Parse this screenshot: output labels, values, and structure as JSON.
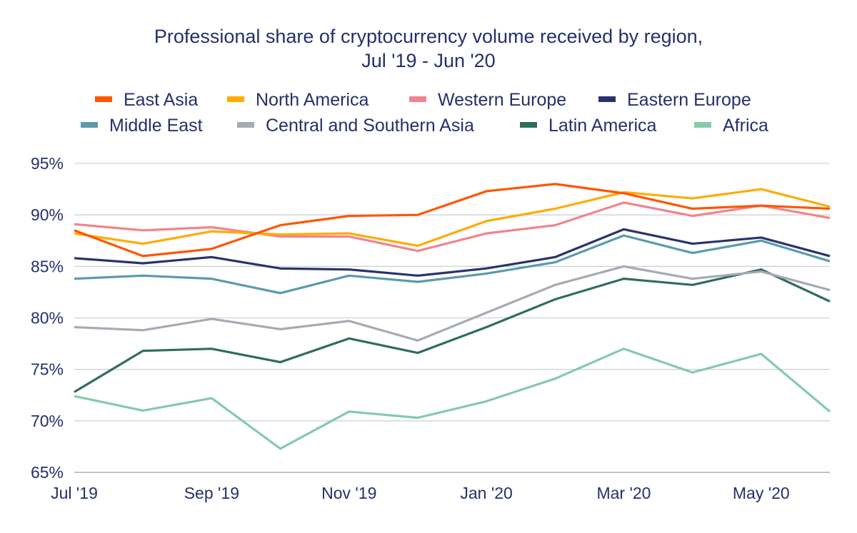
{
  "chart_data": {
    "type": "line",
    "title": [
      "Professional share of cryptocurrency volume received by region,",
      "Jul '19 - Jun '20"
    ],
    "xlabel": "",
    "ylabel": "",
    "x": [
      "Jul '19",
      "Aug '19",
      "Sep '19",
      "Oct '19",
      "Nov '19",
      "Dec '19",
      "Jan '20",
      "Feb '20",
      "Mar '20",
      "Apr '20",
      "May '20",
      "Jun '20"
    ],
    "x_tick_labels": [
      "Jul '19",
      "Sep '19",
      "Nov '19",
      "Jan '20",
      "Mar '20",
      "May '20"
    ],
    "y_tick_labels": [
      "65%",
      "70%",
      "75%",
      "80%",
      "85%",
      "90%",
      "95%"
    ],
    "ylim": [
      65,
      95
    ],
    "grid": "horizontal",
    "legend_position": "top",
    "series": [
      {
        "name": "East Asia",
        "color": "#ff5500",
        "values": [
          88.5,
          86.0,
          86.7,
          89.0,
          89.9,
          90.0,
          92.3,
          93.0,
          92.1,
          90.6,
          90.9,
          90.6
        ]
      },
      {
        "name": "North America",
        "color": "#ffab00",
        "values": [
          88.2,
          87.2,
          88.4,
          88.1,
          88.2,
          87.0,
          89.4,
          90.6,
          92.2,
          91.6,
          92.5,
          90.8
        ]
      },
      {
        "name": "Western Europe",
        "color": "#f0848c",
        "values": [
          89.1,
          88.5,
          88.8,
          87.9,
          87.9,
          86.5,
          88.2,
          89.0,
          91.2,
          89.9,
          90.9,
          89.7
        ]
      },
      {
        "name": "Eastern Europe",
        "color": "#28336e",
        "values": [
          85.8,
          85.3,
          85.9,
          84.8,
          84.7,
          84.1,
          84.8,
          85.9,
          88.6,
          87.2,
          87.8,
          86.0
        ]
      },
      {
        "name": "Middle East",
        "color": "#5a9bab",
        "values": [
          83.8,
          84.1,
          83.8,
          82.4,
          84.1,
          83.5,
          84.3,
          85.4,
          88.0,
          86.3,
          87.5,
          85.5
        ]
      },
      {
        "name": "Central and Southern Asia",
        "color": "#a6aab3",
        "values": [
          79.1,
          78.8,
          79.9,
          78.9,
          79.7,
          77.8,
          80.5,
          83.2,
          85.0,
          83.8,
          84.5,
          82.7
        ]
      },
      {
        "name": "Latin America",
        "color": "#2f6c5f",
        "values": [
          72.8,
          76.8,
          77.0,
          75.7,
          78.0,
          76.6,
          79.1,
          81.8,
          83.8,
          83.2,
          84.7,
          81.6
        ]
      },
      {
        "name": "Africa",
        "color": "#84caab",
        "values": [
          72.4,
          71.0,
          72.2,
          67.3,
          70.9,
          70.3,
          71.9,
          74.1,
          77.0,
          74.7,
          76.5,
          70.9
        ]
      }
    ]
  }
}
